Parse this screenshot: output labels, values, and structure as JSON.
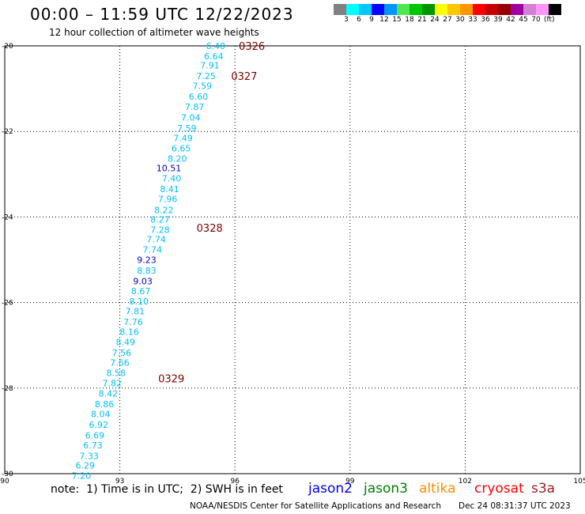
{
  "header": {
    "title": "00:00 – 11:59 UTC 12/22/2023",
    "subtitle": "12 hour collection of altimeter wave heights"
  },
  "legend": {
    "colors": [
      "#808080",
      "#00ffff",
      "#00c8ff",
      "#0000ff",
      "#0096ff",
      "#50e650",
      "#00c800",
      "#009600",
      "#ffff00",
      "#ffc800",
      "#ff9600",
      "#ff0000",
      "#c80000",
      "#960000",
      "#a000a0",
      "#d282d2",
      "#ff96ff",
      "#000000"
    ],
    "labels": [
      "3",
      "6",
      "9",
      "12",
      "15",
      "18",
      "21",
      "24",
      "27",
      "30",
      "33",
      "36",
      "39",
      "42",
      "45",
      "70"
    ],
    "unit": "(ft)"
  },
  "chart_data": {
    "type": "scatter",
    "xlim": [
      90,
      105
    ],
    "ylim": [
      -30,
      -20
    ],
    "x_ticks": [
      "90",
      "93",
      "96",
      "99",
      "102",
      "105"
    ],
    "y_ticks": [
      "-20",
      "-22",
      "-24",
      "-26",
      "-28",
      "-30"
    ],
    "grid": true,
    "points": [
      {
        "lon": 95.75,
        "lat": -20.0,
        "value": "6.40",
        "color": "#00bfff"
      },
      {
        "lon": 95.7,
        "lat": -20.24,
        "value": "6.64",
        "color": "#00bfff"
      },
      {
        "lon": 95.6,
        "lat": -20.45,
        "value": "7.91",
        "color": "#00bfff"
      },
      {
        "lon": 95.5,
        "lat": -20.7,
        "value": "7.25",
        "color": "#00bfff"
      },
      {
        "lon": 95.4,
        "lat": -20.93,
        "value": "7.59",
        "color": "#00bfff"
      },
      {
        "lon": 95.3,
        "lat": -21.18,
        "value": "6.60",
        "color": "#00bfff"
      },
      {
        "lon": 95.2,
        "lat": -21.42,
        "value": "7.87",
        "color": "#00bfff"
      },
      {
        "lon": 95.1,
        "lat": -21.67,
        "value": "7.04",
        "color": "#00bfff"
      },
      {
        "lon": 95.0,
        "lat": -21.92,
        "value": "7.59",
        "color": "#00bfff"
      },
      {
        "lon": 94.9,
        "lat": -22.15,
        "value": "7.49",
        "color": "#00bfff"
      },
      {
        "lon": 94.85,
        "lat": -22.39,
        "value": "6.65",
        "color": "#00bfff"
      },
      {
        "lon": 94.75,
        "lat": -22.63,
        "value": "8.20",
        "color": "#00bfff"
      },
      {
        "lon": 94.6,
        "lat": -22.86,
        "value": "10.51",
        "color": "#0000cc"
      },
      {
        "lon": 94.6,
        "lat": -23.1,
        "value": "7.40",
        "color": "#00bfff"
      },
      {
        "lon": 94.55,
        "lat": -23.35,
        "value": "8.41",
        "color": "#00bfff"
      },
      {
        "lon": 94.5,
        "lat": -23.58,
        "value": "7.96",
        "color": "#00bfff"
      },
      {
        "lon": 94.4,
        "lat": -23.84,
        "value": "8.22",
        "color": "#00bfff"
      },
      {
        "lon": 94.3,
        "lat": -24.06,
        "value": "8.27",
        "color": "#00bfff"
      },
      {
        "lon": 94.3,
        "lat": -24.3,
        "value": "7.28",
        "color": "#00bfff"
      },
      {
        "lon": 94.2,
        "lat": -24.52,
        "value": "7.74",
        "color": "#00bfff"
      },
      {
        "lon": 94.1,
        "lat": -24.76,
        "value": "7.74",
        "color": "#00bfff"
      },
      {
        "lon": 93.95,
        "lat": -25.0,
        "value": "9.23",
        "color": "#0000cc"
      },
      {
        "lon": 93.95,
        "lat": -25.25,
        "value": "8.83",
        "color": "#00bfff"
      },
      {
        "lon": 93.85,
        "lat": -25.5,
        "value": "9.03",
        "color": "#0000cc"
      },
      {
        "lon": 93.8,
        "lat": -25.73,
        "value": "8.67",
        "color": "#00bfff"
      },
      {
        "lon": 93.75,
        "lat": -25.97,
        "value": "8.10",
        "color": "#00bfff"
      },
      {
        "lon": 93.65,
        "lat": -26.2,
        "value": "7.81",
        "color": "#00bfff"
      },
      {
        "lon": 93.6,
        "lat": -26.45,
        "value": "7.76",
        "color": "#00bfff"
      },
      {
        "lon": 93.5,
        "lat": -26.68,
        "value": "8.16",
        "color": "#00bfff"
      },
      {
        "lon": 93.4,
        "lat": -26.92,
        "value": "8.49",
        "color": "#00bfff"
      },
      {
        "lon": 93.3,
        "lat": -27.17,
        "value": "7.56",
        "color": "#00bfff"
      },
      {
        "lon": 93.25,
        "lat": -27.4,
        "value": "7.66",
        "color": "#00bfff"
      },
      {
        "lon": 93.15,
        "lat": -27.64,
        "value": "8.58",
        "color": "#00bfff"
      },
      {
        "lon": 93.05,
        "lat": -27.88,
        "value": "7.82",
        "color": "#00bfff"
      },
      {
        "lon": 92.95,
        "lat": -28.12,
        "value": "8.42",
        "color": "#00bfff"
      },
      {
        "lon": 92.85,
        "lat": -28.37,
        "value": "8.86",
        "color": "#00bfff"
      },
      {
        "lon": 92.75,
        "lat": -28.6,
        "value": "8.04",
        "color": "#00bfff"
      },
      {
        "lon": 92.7,
        "lat": -28.85,
        "value": "6.92",
        "color": "#00bfff"
      },
      {
        "lon": 92.6,
        "lat": -29.1,
        "value": "6.69",
        "color": "#00bfff"
      },
      {
        "lon": 92.55,
        "lat": -29.33,
        "value": "6.73",
        "color": "#00bfff"
      },
      {
        "lon": 92.45,
        "lat": -29.58,
        "value": "7.33",
        "color": "#00bfff"
      },
      {
        "lon": 92.35,
        "lat": -29.81,
        "value": "6.29",
        "color": "#00bfff"
      },
      {
        "lon": 92.25,
        "lat": -30.05,
        "value": "7.20",
        "color": "#00bfff"
      }
    ],
    "time_labels": [
      {
        "lon": 96.1,
        "lat": -20.0,
        "text": "0326",
        "color": "#800000"
      },
      {
        "lon": 95.9,
        "lat": -20.7,
        "text": "0327",
        "color": "#800000"
      },
      {
        "lon": 95.0,
        "lat": -24.25,
        "text": "0328",
        "color": "#800000"
      },
      {
        "lon": 94.0,
        "lat": -27.77,
        "text": "0329",
        "color": "#800000"
      }
    ]
  },
  "footer": {
    "note": "note:  1) Time is in UTC;  2) SWH is in feet",
    "satellites": [
      {
        "name": "jason2",
        "color": "#0000ff"
      },
      {
        "name": "jason3",
        "color": "#008000"
      },
      {
        "name": "altika",
        "color": "#ff8c00"
      },
      {
        "name": "cryosat",
        "color": "#ff0000"
      },
      {
        "name": "s3a",
        "color": "#a01e1e"
      }
    ],
    "credit": "NOAA/NESDIS Center for Satellite Applications and Research",
    "timestamp": "Dec 24 08:31:37 UTC 2023"
  }
}
